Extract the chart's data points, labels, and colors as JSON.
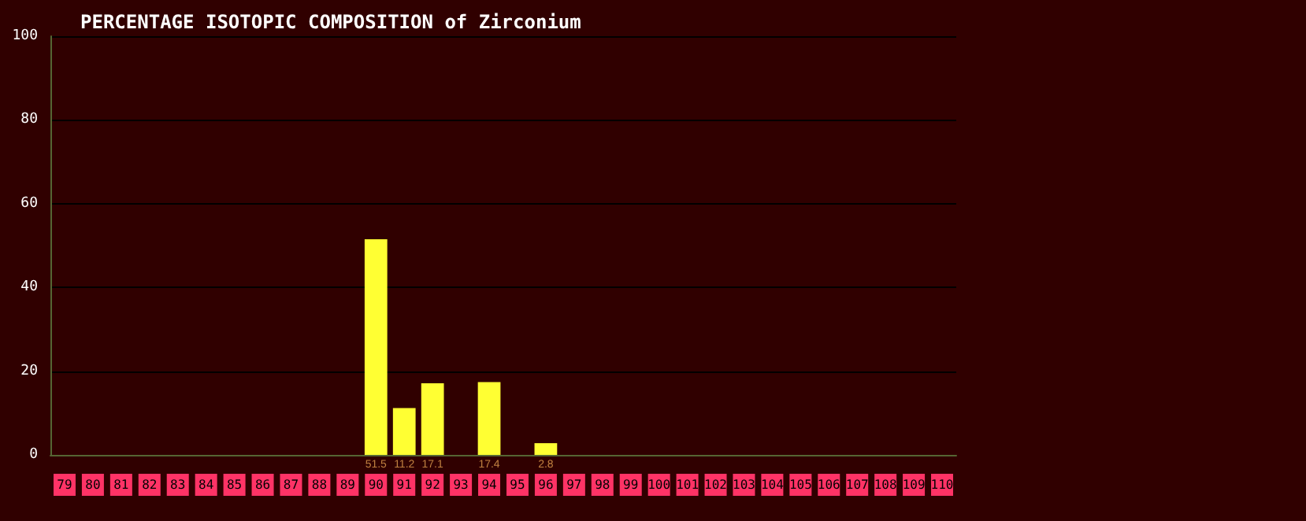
{
  "chart_data": {
    "type": "bar",
    "title": "PERCENTAGE ISOTOPIC COMPOSITION of Zirconium",
    "categories": [
      "79",
      "80",
      "81",
      "82",
      "83",
      "84",
      "85",
      "86",
      "87",
      "88",
      "89",
      "90",
      "91",
      "92",
      "93",
      "94",
      "95",
      "96",
      "97",
      "98",
      "99",
      "100",
      "101",
      "102",
      "103",
      "104",
      "105",
      "106",
      "107",
      "108",
      "109",
      "110"
    ],
    "values": [
      null,
      null,
      null,
      null,
      null,
      null,
      null,
      null,
      null,
      null,
      null,
      51.5,
      11.2,
      17.1,
      null,
      17.4,
      null,
      2.8,
      null,
      null,
      null,
      null,
      null,
      null,
      null,
      null,
      null,
      null,
      null,
      null,
      null,
      null
    ],
    "color": "#ffff33",
    "data_labels": true,
    "ylim": [
      0,
      100
    ],
    "yticks": [
      0,
      20,
      40,
      60,
      80,
      100
    ],
    "grid": "y"
  }
}
